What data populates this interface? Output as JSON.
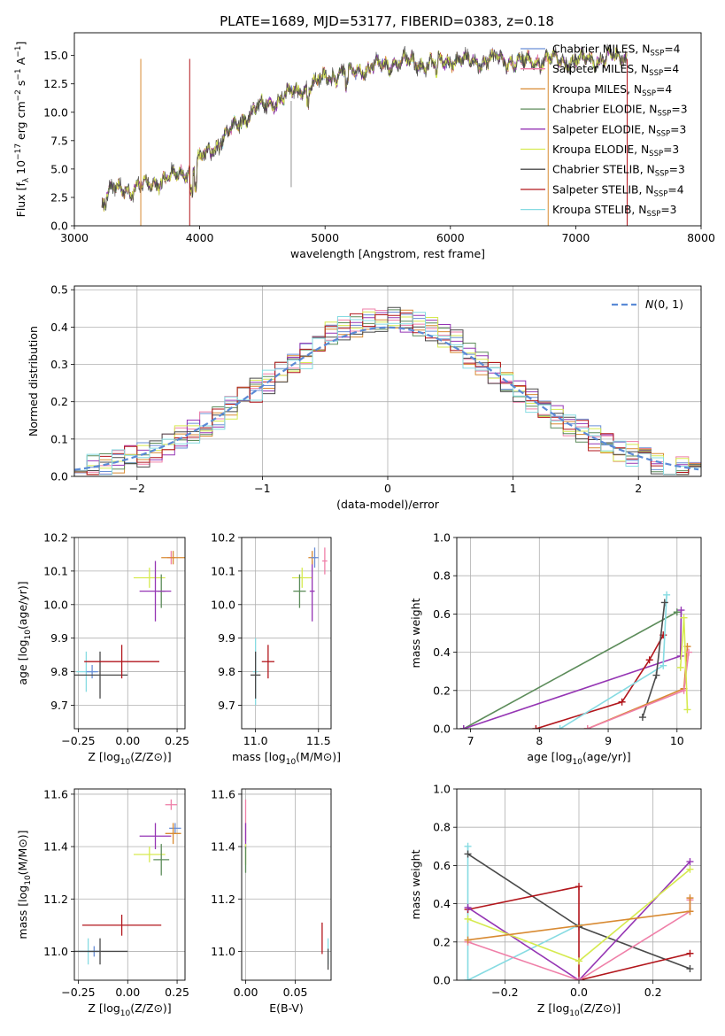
{
  "figure": {
    "title": "PLATE=1689, MJD=53177, FIBERID=0383, z=0.18"
  },
  "colors": {
    "chabrier_miles": "#6a8fd6",
    "salpeter_miles": "#ef7fa8",
    "kroupa_miles": "#d88a32",
    "chabrier_elodie": "#5c8c5a",
    "salpeter_elodie": "#9535b4",
    "kroupa_elodie": "#d6ea50",
    "chabrier_stelib": "#4a4a4a",
    "salpeter_stelib": "#b2161c",
    "kroupa_stelib": "#86dbe2",
    "normal_curve": "#5a8ad6",
    "grid": "#b0b0b0"
  },
  "chart_data": [
    {
      "id": "spectrum",
      "type": "line",
      "xlabel": "wavelength [Angstrom, rest frame]",
      "ylabel": "Flux [f_λ 10^-17 erg cm^-2 s^-1 A^-1]",
      "xlim": [
        3000,
        8000
      ],
      "ylim": [
        0,
        17
      ],
      "xticks": [
        3000,
        4000,
        5000,
        6000,
        7000,
        8000
      ],
      "yticks": [
        0.0,
        2.5,
        5.0,
        7.5,
        10.0,
        12.5,
        15.0
      ],
      "legend_position": "right",
      "spectrum_anchor_points": {
        "wavelength": [
          3220,
          3300,
          3500,
          3700,
          3900,
          4000,
          4200,
          4400,
          4600,
          4800,
          5000,
          5200,
          5400,
          5600,
          5800,
          6000,
          6200,
          6400,
          6600,
          6800,
          7000,
          7200,
          7300,
          7410
        ],
        "flux": [
          2.0,
          3.2,
          3.3,
          4.0,
          4.8,
          5.8,
          7.8,
          10.0,
          11.0,
          12.0,
          13.0,
          13.6,
          14.0,
          14.5,
          14.3,
          14.6,
          14.5,
          14.6,
          14.4,
          14.7,
          14.5,
          14.7,
          14.8,
          15.0
        ]
      },
      "series": [
        {
          "name": "Chabrier MILES, N_SSP=4",
          "color_key": "chabrier_miles"
        },
        {
          "name": "Salpeter MILES, N_SSP=4",
          "color_key": "salpeter_miles"
        },
        {
          "name": "Kroupa MILES, N_SSP=4",
          "color_key": "kroupa_miles"
        },
        {
          "name": "Chabrier ELODIE, N_SSP=3",
          "color_key": "chabrier_elodie"
        },
        {
          "name": "Salpeter ELODIE, N_SSP=3",
          "color_key": "salpeter_elodie"
        },
        {
          "name": "Kroupa ELODIE, N_SSP=3",
          "color_key": "kroupa_elodie"
        },
        {
          "name": "Chabrier STELIB, N_SSP=3",
          "color_key": "chabrier_stelib"
        },
        {
          "name": "Salpeter STELIB, N_SSP=4",
          "color_key": "salpeter_stelib"
        },
        {
          "name": "Kroupa STELIB, N_SSP=3",
          "color_key": "kroupa_stelib"
        }
      ]
    },
    {
      "id": "residuals",
      "type": "histogram",
      "xlabel": "(data-model)/error",
      "ylabel": "Normed distribution",
      "xlim": [
        -2.5,
        2.5
      ],
      "ylim": [
        0,
        0.51
      ],
      "xticks": [
        -2,
        -1,
        0,
        1,
        2
      ],
      "yticks": [
        0.0,
        0.1,
        0.2,
        0.3,
        0.4,
        0.5
      ],
      "legend": "N(0,1)",
      "legend_position": "top-right",
      "bin_width": 0.1,
      "bins_start": -2.5,
      "normal_curve": {
        "mean": 0,
        "sigma": 1
      }
    },
    {
      "id": "age_vs_Z",
      "type": "errorbar",
      "xlabel": "Z [log10(Z/Z⊙)]",
      "ylabel": "age  [log10(age/yr)]",
      "xlim": [
        -0.27,
        0.29
      ],
      "ylim": [
        9.63,
        10.2
      ],
      "xticks": [
        -0.25,
        0.0,
        0.25
      ],
      "yticks": [
        9.7,
        9.8,
        9.9,
        10.0,
        10.1,
        10.2
      ],
      "points": [
        {
          "key": "kroupa_stelib",
          "x": -0.21,
          "xerr": 0.05,
          "y": 9.8,
          "yerr": 0.06
        },
        {
          "key": "chabrier_miles",
          "x": -0.18,
          "xerr": 0.03,
          "y": 9.8,
          "yerr": 0.02
        },
        {
          "key": "chabrier_stelib",
          "x": -0.14,
          "xerr": 0.14,
          "y": 9.79,
          "yerr": 0.07
        },
        {
          "key": "salpeter_stelib",
          "x": -0.03,
          "xerr": 0.19,
          "y": 9.83,
          "yerr": 0.05
        },
        {
          "key": "kroupa_elodie",
          "x": 0.11,
          "xerr": 0.08,
          "y": 10.08,
          "yerr": 0.03
        },
        {
          "key": "chabrier_elodie",
          "x": 0.17,
          "xerr": 0.02,
          "y": 10.04,
          "yerr": 0.05
        },
        {
          "key": "salpeter_elodie",
          "x": 0.14,
          "xerr": 0.08,
          "y": 10.04,
          "yerr": 0.09
        },
        {
          "key": "salpeter_miles",
          "x": 0.22,
          "xerr": 0.02,
          "y": 10.14,
          "yerr": 0.02
        },
        {
          "key": "kroupa_miles",
          "x": 0.23,
          "xerr": 0.06,
          "y": 10.14,
          "yerr": 0.02
        }
      ]
    },
    {
      "id": "age_vs_mass",
      "type": "errorbar",
      "xlabel": "mass [log10(M/M⊙)]",
      "ylabel": "",
      "xlim": [
        10.89,
        11.6
      ],
      "ylim": [
        9.63,
        10.2
      ],
      "xticks": [
        11.0,
        11.5
      ],
      "yticks": [
        9.7,
        9.8,
        9.9,
        10.0,
        10.1,
        10.2
      ],
      "points": [
        {
          "key": "kroupa_stelib",
          "x": 11.0,
          "xerr": 0.02,
          "y": 9.8,
          "yerr": 0.1
        },
        {
          "key": "chabrier_stelib",
          "x": 11.0,
          "xerr": 0.04,
          "y": 9.79,
          "yerr": 0.07
        },
        {
          "key": "salpeter_stelib",
          "x": 11.1,
          "xerr": 0.05,
          "y": 9.83,
          "yerr": 0.05
        },
        {
          "key": "kroupa_elodie",
          "x": 11.37,
          "xerr": 0.08,
          "y": 10.08,
          "yerr": 0.03
        },
        {
          "key": "chabrier_elodie",
          "x": 11.35,
          "xerr": 0.05,
          "y": 10.04,
          "yerr": 0.05
        },
        {
          "key": "salpeter_elodie",
          "x": 11.45,
          "xerr": 0.02,
          "y": 10.04,
          "yerr": 0.09
        },
        {
          "key": "salpeter_miles",
          "x": 11.55,
          "xerr": 0.02,
          "y": 10.13,
          "yerr": 0.04
        },
        {
          "key": "kroupa_miles",
          "x": 11.45,
          "xerr": 0.03,
          "y": 10.14,
          "yerr": 0.02
        },
        {
          "key": "chabrier_miles",
          "x": 11.47,
          "xerr": 0.03,
          "y": 10.14,
          "yerr": 0.03
        }
      ]
    },
    {
      "id": "weight_vs_age",
      "type": "line",
      "xlabel": "age  [log10(age/yr)]",
      "ylabel": "mass weight",
      "xlim": [
        6.8,
        10.35
      ],
      "ylim": [
        0,
        1.0
      ],
      "xticks": [
        7,
        8,
        9,
        10
      ],
      "yticks": [
        0.0,
        0.2,
        0.4,
        0.6,
        0.8,
        1.0
      ],
      "series": [
        {
          "key": "chabrier_elodie",
          "points": [
            [
              6.9,
              0.0
            ],
            [
              10.0,
              0.61
            ]
          ]
        },
        {
          "key": "salpeter_elodie",
          "points": [
            [
              6.9,
              0.0
            ],
            [
              10.05,
              0.38
            ],
            [
              10.06,
              0.62
            ]
          ]
        },
        {
          "key": "salpeter_stelib",
          "points": [
            [
              7.95,
              0.0
            ],
            [
              9.2,
              0.14
            ],
            [
              9.6,
              0.36
            ],
            [
              9.8,
              0.49
            ]
          ]
        },
        {
          "key": "kroupa_stelib",
          "points": [
            [
              8.3,
              0.0
            ],
            [
              9.8,
              0.33
            ],
            [
              9.85,
              0.7
            ]
          ]
        },
        {
          "key": "chabrier_stelib",
          "points": [
            [
              9.5,
              0.06
            ],
            [
              9.7,
              0.28
            ],
            [
              9.82,
              0.66
            ]
          ]
        },
        {
          "key": "kroupa_miles",
          "points": [
            [
              8.7,
              0.0
            ],
            [
              10.1,
              0.21
            ],
            [
              10.15,
              0.43
            ]
          ]
        },
        {
          "key": "salpeter_miles",
          "points": [
            [
              8.7,
              0.0
            ],
            [
              10.1,
              0.2
            ],
            [
              10.17,
              0.4
            ]
          ]
        },
        {
          "key": "kroupa_elodie",
          "points": [
            [
              10.05,
              0.32
            ],
            [
              10.1,
              0.58
            ],
            [
              10.15,
              0.1
            ]
          ]
        }
      ]
    },
    {
      "id": "mass_vs_Z",
      "type": "errorbar",
      "xlabel": "Z [log10(Z/Z⊙)]",
      "ylabel": "mass [log10(M/M⊙)]",
      "xlim": [
        -0.27,
        0.29
      ],
      "ylim": [
        10.89,
        11.62
      ],
      "xticks": [
        -0.25,
        0.0,
        0.25
      ],
      "yticks": [
        11.0,
        11.2,
        11.4,
        11.6
      ],
      "points": [
        {
          "key": "kroupa_stelib",
          "x": -0.2,
          "xerr": 0.05,
          "y": 11.0,
          "yerr": 0.05
        },
        {
          "key": "chabrier_miles",
          "x": -0.17,
          "xerr": 0.03,
          "y": 11.0,
          "yerr": 0.02
        },
        {
          "key": "chabrier_stelib",
          "x": -0.14,
          "xerr": 0.14,
          "y": 11.0,
          "yerr": 0.05
        },
        {
          "key": "salpeter_stelib",
          "x": -0.03,
          "xerr": 0.2,
          "y": 11.1,
          "yerr": 0.04
        },
        {
          "key": "kroupa_elodie",
          "x": 0.11,
          "xerr": 0.08,
          "y": 11.37,
          "yerr": 0.03
        },
        {
          "key": "chabrier_elodie",
          "x": 0.17,
          "xerr": 0.04,
          "y": 11.35,
          "yerr": 0.06
        },
        {
          "key": "salpeter_elodie",
          "x": 0.14,
          "xerr": 0.08,
          "y": 11.44,
          "yerr": 0.05
        },
        {
          "key": "salpeter_miles",
          "x": 0.22,
          "xerr": 0.03,
          "y": 11.56,
          "yerr": 0.02
        },
        {
          "key": "chabrier_miles",
          "x": 0.24,
          "xerr": 0.03,
          "y": 11.47,
          "yerr": 0.02
        },
        {
          "key": "kroupa_miles",
          "x": 0.23,
          "xerr": 0.04,
          "y": 11.45,
          "yerr": 0.04
        }
      ]
    },
    {
      "id": "mass_vs_ebv",
      "type": "errorbar",
      "xlabel": "E(B-V)",
      "ylabel": "",
      "xlim": [
        -0.004,
        0.086
      ],
      "ylim": [
        10.89,
        11.62
      ],
      "xticks": [
        0.0,
        0.05
      ],
      "yticks": [
        11.0,
        11.2,
        11.4,
        11.6
      ],
      "points": [
        {
          "key": "salpeter_miles",
          "x": 0.0,
          "xerr": 0.0,
          "y": 11.5,
          "yerr": 0.08
        },
        {
          "key": "salpeter_elodie",
          "x": 0.0,
          "xerr": 0.0,
          "y": 11.44,
          "yerr": 0.05
        },
        {
          "key": "kroupa_elodie",
          "x": 0.0,
          "xerr": 0.0,
          "y": 11.37,
          "yerr": 0.04
        },
        {
          "key": "chabrier_elodie",
          "x": 0.0,
          "xerr": 0.0,
          "y": 11.35,
          "yerr": 0.05
        },
        {
          "key": "salpeter_stelib",
          "x": 0.077,
          "xerr": 0.0,
          "y": 11.05,
          "yerr": 0.06
        },
        {
          "key": "kroupa_stelib",
          "x": 0.083,
          "xerr": 0.0,
          "y": 11.0,
          "yerr": 0.05
        },
        {
          "key": "chabrier_stelib",
          "x": 0.083,
          "xerr": 0.0,
          "y": 10.97,
          "yerr": 0.04
        }
      ]
    },
    {
      "id": "weight_vs_Z",
      "type": "line",
      "xlabel": "Z [log10(Z/Z⊙)]",
      "ylabel": "mass weight",
      "xlim": [
        -0.33,
        0.33
      ],
      "ylim": [
        0,
        1.0
      ],
      "xticks": [
        -0.2,
        0.0,
        0.2
      ],
      "yticks": [
        0.0,
        0.2,
        0.4,
        0.6,
        0.8,
        1.0
      ],
      "series": [
        {
          "key": "kroupa_stelib",
          "points": [
            [
              -0.3,
              0.7
            ],
            [
              -0.3,
              0.0
            ],
            [
              0.0,
              0.29
            ]
          ]
        },
        {
          "key": "chabrier_stelib",
          "points": [
            [
              -0.3,
              0.66
            ],
            [
              0.0,
              0.28
            ],
            [
              0.3,
              0.06
            ]
          ]
        },
        {
          "key": "salpeter_stelib",
          "points": [
            [
              -0.3,
              0.37
            ],
            [
              0.0,
              0.49
            ],
            [
              0.0,
              0.0
            ],
            [
              0.3,
              0.14
            ]
          ]
        },
        {
          "key": "salpeter_elodie",
          "points": [
            [
              -0.3,
              0.38
            ],
            [
              0.0,
              0.0
            ],
            [
              0.3,
              0.62
            ]
          ]
        },
        {
          "key": "kroupa_elodie",
          "points": [
            [
              -0.3,
              0.32
            ],
            [
              0.0,
              0.1
            ],
            [
              0.3,
              0.58
            ]
          ]
        },
        {
          "key": "salpeter_miles",
          "points": [
            [
              -0.3,
              0.2
            ],
            [
              0.0,
              0.0
            ],
            [
              0.3,
              0.36
            ],
            [
              0.3,
              0.42
            ]
          ]
        },
        {
          "key": "kroupa_miles",
          "points": [
            [
              -0.3,
              0.21
            ],
            [
              0.3,
              0.36
            ],
            [
              0.3,
              0.43
            ]
          ]
        }
      ]
    }
  ]
}
